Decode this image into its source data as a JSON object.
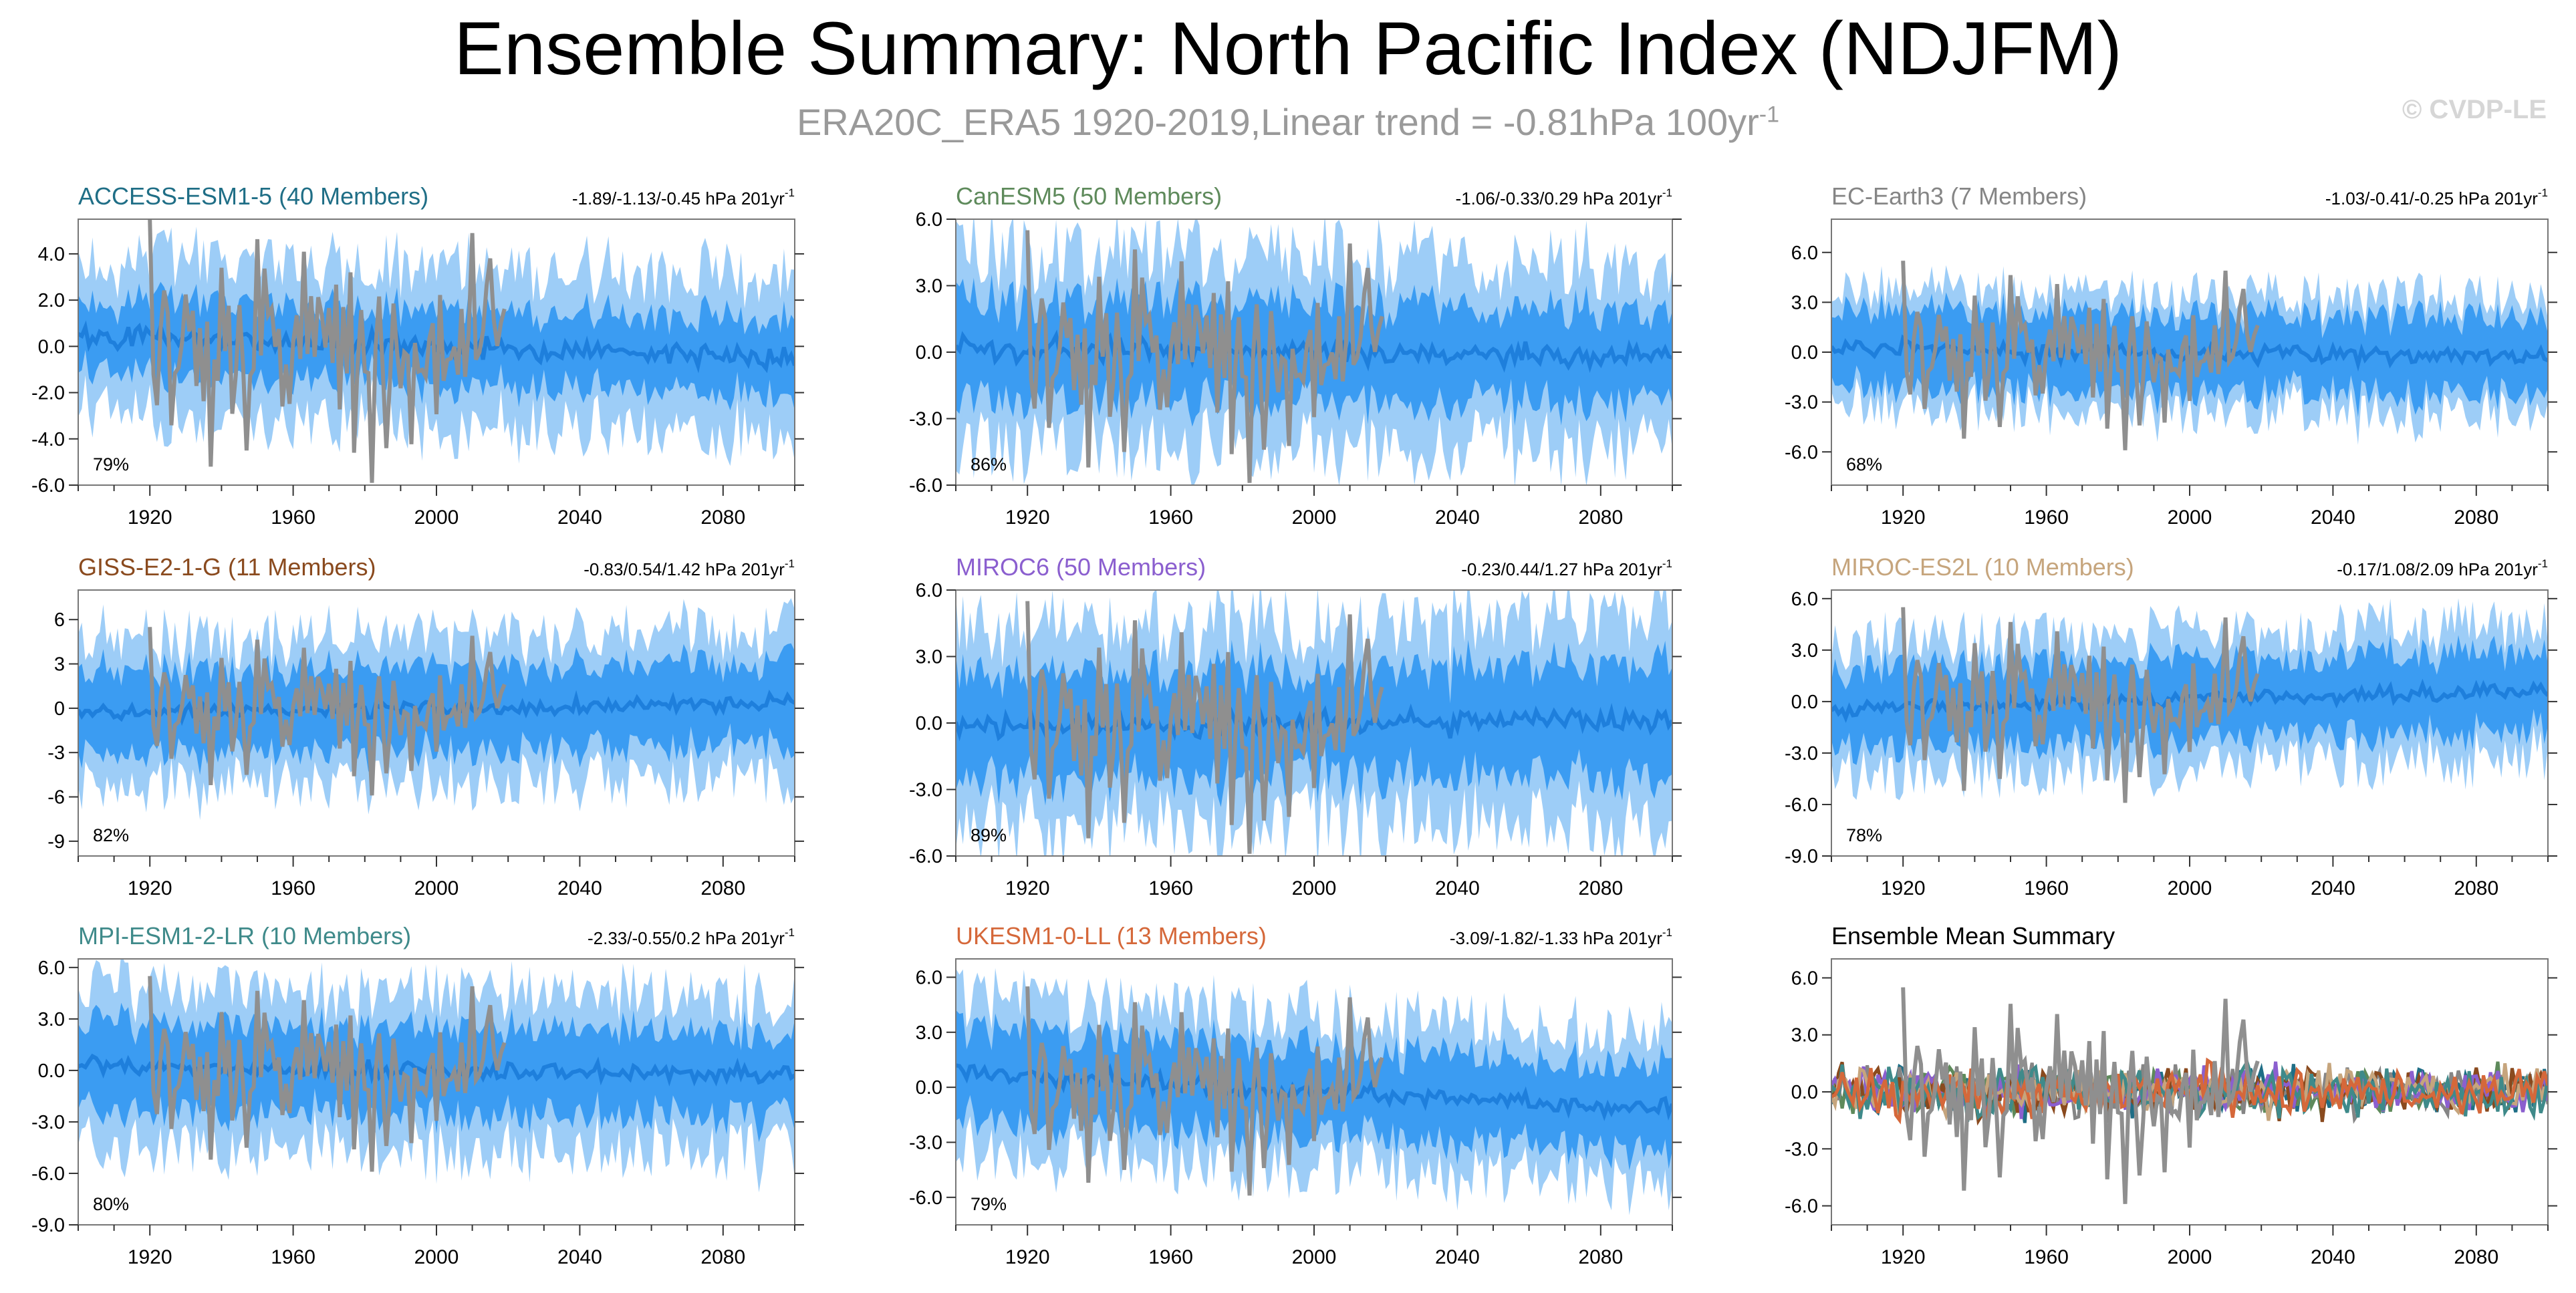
{
  "title": "Ensemble Summary: North Pacific Index (NDJFM)",
  "subtitle": "ERA20C_ERA5 1920-2019,Linear trend = -0.81hPa 100yr",
  "subtitle_sup": "-1",
  "copyright": "© CVDP-LE",
  "colors": {
    "outer_band": "#9dcdf7",
    "inner_band": "#3b9cf2",
    "ensemble_mean": "#1e7fdc",
    "observations": "#8f8f8f"
  },
  "chart_data": [
    {
      "type": "area",
      "title": "ACCESS-ESM1-5 (40 Members)",
      "title_color": "#1f6e86",
      "trend_text": "-1.89/-1.13/-0.45 hPa 201yr",
      "trend_sup": "-1",
      "percent": "79%",
      "xlim": [
        1900,
        2100
      ],
      "xticks": [
        1920,
        1960,
        2000,
        2040,
        2080
      ],
      "ylim": [
        -6,
        5.5
      ],
      "yticks": [
        -6,
        -4,
        -2,
        0,
        2,
        4
      ],
      "ytick_labels": [
        "-6.0",
        "-4.0",
        "-2.0",
        "0.0",
        "2.0",
        "4.0"
      ],
      "obs_range": [
        1920,
        2019
      ],
      "mean_trend": [
        0.5,
        -0.5
      ],
      "band_inner": 1.6,
      "band_outer": 3.4
    },
    {
      "type": "area",
      "title": "CanESM5 (50 Members)",
      "title_color": "#5e8a5b",
      "trend_text": "-1.06/-0.33/0.29 hPa 201yr",
      "trend_sup": "-1",
      "percent": "86%",
      "xlim": [
        1900,
        2100
      ],
      "xticks": [
        1920,
        1960,
        2000,
        2040,
        2080
      ],
      "ylim": [
        -6,
        6
      ],
      "yticks": [
        -6,
        -3,
        0,
        3,
        6
      ],
      "ytick_labels": [
        "-6.0",
        "-3.0",
        "0.0",
        "3.0",
        "6.0"
      ],
      "obs_range": [
        1920,
        2019
      ],
      "mean_trend": [
        0.2,
        -0.2
      ],
      "band_inner": 2.2,
      "band_outer": 4.3
    },
    {
      "type": "area",
      "title": "EC-Earth3 (7 Members)",
      "title_color": "#858585",
      "trend_text": "-1.03/-0.41/-0.25 hPa 201yr",
      "trend_sup": "-1",
      "percent": "68%",
      "xlim": [
        1900,
        2100
      ],
      "xticks": [
        1920,
        1960,
        2000,
        2040,
        2080
      ],
      "ylim": [
        -8,
        8
      ],
      "yticks": [
        -6,
        -3,
        0,
        3,
        6
      ],
      "ytick_labels": [
        "-6.0",
        "-3.0",
        "0.0",
        "3.0",
        "6.0"
      ],
      "obs_range": [
        1920,
        2019
      ],
      "mean_trend": [
        0.2,
        -0.3
      ],
      "band_inner": 2.3,
      "band_outer": 3.5
    },
    {
      "type": "area",
      "title": "GISS-E2-1-G (11 Members)",
      "title_color": "#8a4a1e",
      "trend_text": "-0.83/0.54/1.42 hPa 201yr",
      "trend_sup": "-1",
      "percent": "82%",
      "xlim": [
        1900,
        2100
      ],
      "xticks": [
        1920,
        1960,
        2000,
        2040,
        2080
      ],
      "ylim": [
        -10,
        8
      ],
      "yticks": [
        -9,
        -6,
        -3,
        0,
        3,
        6
      ],
      "ytick_labels": [
        "-9",
        "-6",
        "-3",
        "0",
        "3",
        "6"
      ],
      "obs_range": [
        1920,
        2019
      ],
      "mean_trend": [
        -0.3,
        0.3
      ],
      "band_inner": 2.8,
      "band_outer": 5.0
    },
    {
      "type": "area",
      "title": "MIROC6 (50 Members)",
      "title_color": "#8b5fcf",
      "trend_text": "-0.23/0.44/1.27 hPa 201yr",
      "trend_sup": "-1",
      "percent": "89%",
      "xlim": [
        1900,
        2100
      ],
      "xticks": [
        1920,
        1960,
        2000,
        2040,
        2080
      ],
      "ylim": [
        -6,
        6
      ],
      "yticks": [
        -6,
        -3,
        0,
        3,
        6
      ],
      "ytick_labels": [
        "-6.0",
        "-3.0",
        "0.0",
        "3.0",
        "6.0"
      ],
      "obs_range": [
        1920,
        2019
      ],
      "mean_trend": [
        -0.2,
        0.2
      ],
      "band_inner": 2.4,
      "band_outer": 4.5
    },
    {
      "type": "area",
      "title": "MIROC-ES2L (10 Members)",
      "title_color": "#c6a57d",
      "trend_text": "-0.17/1.08/2.09 hPa 201yr",
      "trend_sup": "-1",
      "percent": "78%",
      "xlim": [
        1900,
        2100
      ],
      "xticks": [
        1920,
        1960,
        2000,
        2040,
        2080
      ],
      "ylim": [
        -9,
        6.5
      ],
      "yticks": [
        -9,
        -6,
        -3,
        0,
        3,
        6
      ],
      "ytick_labels": [
        "-9.0",
        "-6.0",
        "-3.0",
        "0.0",
        "3.0",
        "6.0"
      ],
      "obs_range": [
        1920,
        2019
      ],
      "mean_trend": [
        -0.4,
        0.6
      ],
      "band_inner": 2.3,
      "band_outer": 3.9
    },
    {
      "type": "area",
      "title": "MPI-ESM1-2-LR (10 Members)",
      "title_color": "#3f8a8a",
      "trend_text": "-2.33/-0.55/0.2 hPa 201yr",
      "trend_sup": "-1",
      "percent": "80%",
      "xlim": [
        1900,
        2100
      ],
      "xticks": [
        1920,
        1960,
        2000,
        2040,
        2080
      ],
      "ylim": [
        -9,
        6.5
      ],
      "yticks": [
        -9,
        -6,
        -3,
        0,
        3,
        6
      ],
      "ytick_labels": [
        "-9.0",
        "-6.0",
        "-3.0",
        "0.0",
        "3.0",
        "6.0"
      ],
      "obs_range": [
        1920,
        2019
      ],
      "mean_trend": [
        0.3,
        -0.3
      ],
      "band_inner": 2.5,
      "band_outer": 4.6
    },
    {
      "type": "area",
      "title": "UKESM1-0-LL (13 Members)",
      "title_color": "#d5683a",
      "trend_text": "-3.09/-1.82/-1.33 hPa 201yr",
      "trend_sup": "-1",
      "percent": "79%",
      "xlim": [
        1900,
        2100
      ],
      "xticks": [
        1920,
        1960,
        2000,
        2040,
        2080
      ],
      "ylim": [
        -7.5,
        7
      ],
      "yticks": [
        -6,
        -3,
        0,
        3,
        6
      ],
      "ytick_labels": [
        "-6.0",
        "-3.0",
        "0.0",
        "3.0",
        "6.0"
      ],
      "obs_range": [
        1920,
        2019
      ],
      "mean_trend": [
        0.8,
        -1.2
      ],
      "band_inner": 2.4,
      "band_outer": 4.2
    },
    {
      "type": "line",
      "title": "Ensemble Mean Summary",
      "title_color": "#000000",
      "xlim": [
        1900,
        2100
      ],
      "xticks": [
        1920,
        1960,
        2000,
        2040,
        2080
      ],
      "ylim": [
        -7,
        7
      ],
      "yticks": [
        -6,
        -3,
        0,
        3,
        6
      ],
      "ytick_labels": [
        "-6.0",
        "-3.0",
        "0.0",
        "3.0",
        "6.0"
      ],
      "obs_range": [
        1920,
        2019
      ],
      "series_colors": [
        "#1f6e86",
        "#5e8a5b",
        "#858585",
        "#8a4a1e",
        "#8b5fcf",
        "#c6a57d",
        "#3f8a8a",
        "#d5683a"
      ]
    }
  ]
}
